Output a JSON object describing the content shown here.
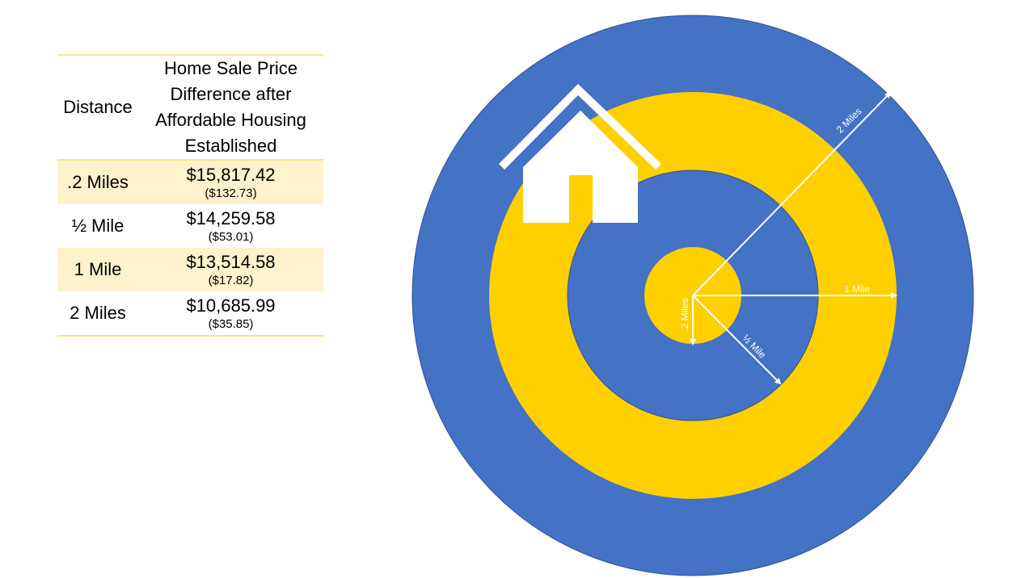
{
  "table": {
    "headers": {
      "distance": "Distance",
      "price": "Home Sale Price Difference after Affordable Housing Established"
    },
    "rows": [
      {
        "distance": ".2 Miles",
        "price": "$15,817.42",
        "sub": "($132.73)"
      },
      {
        "distance": "½ Mile",
        "price": "$14,259.58",
        "sub": "($53.01)"
      },
      {
        "distance": "1 Mile",
        "price": "$13,514.58",
        "sub": "($17.82)"
      },
      {
        "distance": "2 Miles",
        "price": "$10,685.99",
        "sub": "($35.85)"
      }
    ]
  },
  "diagram": {
    "labels": {
      "two_miles": "2 Miles",
      "one_mile": "1 Mile",
      "half_mile": "½ Mile",
      "point_two_miles": ".2 Miles"
    },
    "colors": {
      "blue": "#4472c4",
      "yellow": "#ffd000",
      "white": "#ffffff",
      "table_border": "#fbe08a",
      "table_shade": "#fff2cc"
    }
  }
}
